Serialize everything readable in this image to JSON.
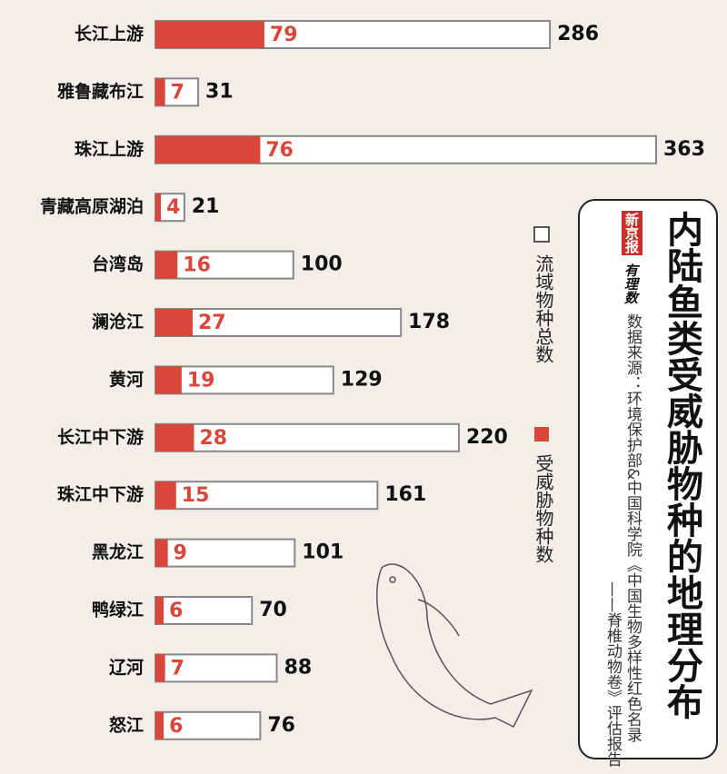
{
  "chart_data": {
    "type": "bar",
    "orientation": "horizontal",
    "title": "内陆鱼类受威胁物种的地理分布",
    "publisher": "新京报",
    "column": "有理数",
    "source": [
      "数据来源：环境保护部&中国科学院《中国生物多样性红色名录",
      "——脊椎动物卷》评估报告"
    ],
    "categories": [
      "长江上游",
      "雅鲁藏布江",
      "珠江上游",
      "青藏高原湖泊",
      "台湾岛",
      "澜沧江",
      "黄河",
      "长江中下游",
      "珠江中下游",
      "黑龙江",
      "鸭绿江",
      "辽河",
      "怒江"
    ],
    "series": [
      {
        "name": "流域物种总数",
        "color": "#ffffff",
        "values": [
          286,
          31,
          363,
          21,
          100,
          178,
          129,
          220,
          161,
          101,
          70,
          88,
          76
        ]
      },
      {
        "name": "受威胁物种数",
        "color": "#d9473a",
        "values": [
          79,
          7,
          76,
          4,
          16,
          27,
          19,
          28,
          15,
          9,
          6,
          7,
          6
        ]
      }
    ]
  }
}
